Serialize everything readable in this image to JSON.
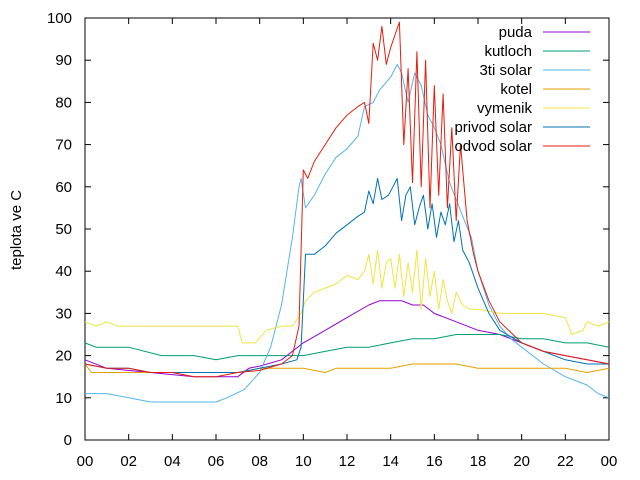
{
  "chart_data": {
    "type": "line",
    "title": "",
    "xlabel": "",
    "ylabel": "teplota ve C",
    "xlim": [
      0,
      24
    ],
    "ylim": [
      0,
      100
    ],
    "x_tick_labels": [
      "00",
      "02",
      "04",
      "06",
      "08",
      "10",
      "12",
      "14",
      "16",
      "18",
      "20",
      "22",
      "00"
    ],
    "y_ticks": [
      0,
      10,
      20,
      30,
      40,
      50,
      60,
      70,
      80,
      90,
      100
    ],
    "grid": false,
    "legend_position": "top-right",
    "series": [
      {
        "name": "puda",
        "color": "#9400d3",
        "points": [
          [
            0,
            19
          ],
          [
            1,
            17
          ],
          [
            3,
            16
          ],
          [
            5,
            15
          ],
          [
            7,
            15
          ],
          [
            7.5,
            17
          ],
          [
            8,
            17.5
          ],
          [
            9,
            19
          ],
          [
            10,
            23
          ],
          [
            11,
            26
          ],
          [
            12,
            29
          ],
          [
            13,
            32
          ],
          [
            13.5,
            33
          ],
          [
            14.5,
            33
          ],
          [
            15,
            32
          ],
          [
            15.5,
            32
          ],
          [
            16,
            30
          ],
          [
            17,
            28
          ],
          [
            18,
            26
          ],
          [
            19,
            25
          ],
          [
            20,
            23
          ],
          [
            21,
            21
          ],
          [
            22,
            20
          ],
          [
            23,
            19
          ],
          [
            24,
            18
          ]
        ]
      },
      {
        "name": "kutloch",
        "color": "#009e73",
        "points": [
          [
            0,
            23
          ],
          [
            0.5,
            22
          ],
          [
            2,
            22
          ],
          [
            3.5,
            20
          ],
          [
            5,
            20
          ],
          [
            6,
            19
          ],
          [
            7,
            20
          ],
          [
            8,
            20
          ],
          [
            9,
            20
          ],
          [
            10,
            20
          ],
          [
            11,
            21
          ],
          [
            12,
            22
          ],
          [
            13,
            22
          ],
          [
            14,
            23
          ],
          [
            15,
            24
          ],
          [
            16,
            24
          ],
          [
            17,
            25
          ],
          [
            18,
            25
          ],
          [
            19,
            25
          ],
          [
            20,
            24
          ],
          [
            21,
            24
          ],
          [
            22,
            23
          ],
          [
            23,
            23
          ],
          [
            24,
            22
          ]
        ]
      },
      {
        "name": "3ti solar",
        "color": "#56b4e9",
        "points": [
          [
            0,
            11
          ],
          [
            1,
            11
          ],
          [
            2,
            10
          ],
          [
            3,
            9
          ],
          [
            4,
            9
          ],
          [
            5,
            9
          ],
          [
            6,
            9
          ],
          [
            6.5,
            10
          ],
          [
            7.3,
            12
          ],
          [
            8,
            16
          ],
          [
            8.5,
            22
          ],
          [
            9,
            32
          ],
          [
            9.5,
            48
          ],
          [
            9.8,
            60
          ],
          [
            9.9,
            62
          ],
          [
            10.1,
            55
          ],
          [
            10.5,
            58
          ],
          [
            11,
            63
          ],
          [
            11.5,
            67
          ],
          [
            12,
            69
          ],
          [
            12.5,
            72
          ],
          [
            12.8,
            79
          ],
          [
            13.2,
            80
          ],
          [
            13.5,
            83
          ],
          [
            14,
            86
          ],
          [
            14.3,
            89
          ],
          [
            14.5,
            87
          ],
          [
            14.8,
            80
          ],
          [
            15.1,
            87
          ],
          [
            15.4,
            84
          ],
          [
            15.7,
            77
          ],
          [
            16,
            74
          ],
          [
            16.3,
            70
          ],
          [
            16.7,
            61
          ],
          [
            17,
            57
          ],
          [
            17.3,
            53
          ],
          [
            17.7,
            48
          ],
          [
            18,
            40
          ],
          [
            18.5,
            32
          ],
          [
            19,
            27
          ],
          [
            19.5,
            24
          ],
          [
            20,
            22
          ],
          [
            21,
            18
          ],
          [
            22,
            15
          ],
          [
            23,
            13
          ],
          [
            23.5,
            11
          ],
          [
            24,
            10
          ]
        ]
      },
      {
        "name": "kotel",
        "color": "#e69f00",
        "points": [
          [
            0,
            18
          ],
          [
            0.3,
            16
          ],
          [
            1,
            16
          ],
          [
            3,
            16
          ],
          [
            5,
            16
          ],
          [
            7,
            16
          ],
          [
            8,
            17
          ],
          [
            9,
            17
          ],
          [
            10,
            17
          ],
          [
            11,
            16
          ],
          [
            11.5,
            17
          ],
          [
            13,
            17
          ],
          [
            14,
            17
          ],
          [
            15,
            18
          ],
          [
            17,
            18
          ],
          [
            18,
            17
          ],
          [
            19,
            17
          ],
          [
            20,
            17
          ],
          [
            21,
            17
          ],
          [
            22,
            17
          ],
          [
            23,
            16
          ],
          [
            24,
            17
          ]
        ]
      },
      {
        "name": "vymenik",
        "color": "#f0e442",
        "points": [
          [
            0,
            28
          ],
          [
            0.5,
            27
          ],
          [
            1,
            28
          ],
          [
            1.5,
            27
          ],
          [
            2,
            27
          ],
          [
            4,
            27
          ],
          [
            6,
            27
          ],
          [
            7,
            27
          ],
          [
            7.2,
            23
          ],
          [
            7.8,
            23
          ],
          [
            8.3,
            26
          ],
          [
            9,
            27
          ],
          [
            9.5,
            27
          ],
          [
            9.9,
            30
          ],
          [
            10.1,
            33
          ],
          [
            10.5,
            35
          ],
          [
            11,
            36
          ],
          [
            11.5,
            37
          ],
          [
            12,
            39
          ],
          [
            12.5,
            38
          ],
          [
            12.8,
            40
          ],
          [
            13,
            44
          ],
          [
            13.2,
            37
          ],
          [
            13.4,
            45
          ],
          [
            13.6,
            36
          ],
          [
            13.8,
            42
          ],
          [
            14,
            43
          ],
          [
            14.2,
            36
          ],
          [
            14.4,
            44
          ],
          [
            14.6,
            34
          ],
          [
            14.8,
            42
          ],
          [
            15,
            35
          ],
          [
            15.2,
            45
          ],
          [
            15.4,
            31
          ],
          [
            15.6,
            43
          ],
          [
            15.8,
            34
          ],
          [
            16,
            40
          ],
          [
            16.2,
            31
          ],
          [
            16.4,
            38
          ],
          [
            16.6,
            33
          ],
          [
            16.8,
            30
          ],
          [
            17,
            35
          ],
          [
            17.3,
            32
          ],
          [
            17.6,
            31
          ],
          [
            18,
            31
          ],
          [
            19,
            30
          ],
          [
            20,
            30
          ],
          [
            21,
            30
          ],
          [
            22,
            29
          ],
          [
            22.3,
            25
          ],
          [
            22.8,
            26
          ],
          [
            23,
            28
          ],
          [
            23.5,
            27
          ],
          [
            24,
            28
          ]
        ]
      },
      {
        "name": "privod solar",
        "color": "#0072b2",
        "points": [
          [
            0,
            18
          ],
          [
            1,
            17
          ],
          [
            2,
            17
          ],
          [
            3,
            16
          ],
          [
            5,
            16
          ],
          [
            6,
            16
          ],
          [
            7,
            16
          ],
          [
            8,
            17
          ],
          [
            9,
            18
          ],
          [
            9.7,
            19
          ],
          [
            9.9,
            22
          ],
          [
            10.1,
            44
          ],
          [
            10.5,
            44
          ],
          [
            11,
            46
          ],
          [
            11.5,
            49
          ],
          [
            12,
            51
          ],
          [
            12.5,
            53
          ],
          [
            12.8,
            54
          ],
          [
            13,
            59
          ],
          [
            13.2,
            56
          ],
          [
            13.4,
            62
          ],
          [
            13.6,
            57
          ],
          [
            13.9,
            58
          ],
          [
            14.1,
            60
          ],
          [
            14.3,
            62
          ],
          [
            14.5,
            52
          ],
          [
            14.7,
            58
          ],
          [
            14.9,
            60
          ],
          [
            15.1,
            51
          ],
          [
            15.3,
            55
          ],
          [
            15.5,
            58
          ],
          [
            15.7,
            50
          ],
          [
            15.9,
            56
          ],
          [
            16.1,
            48
          ],
          [
            16.3,
            54
          ],
          [
            16.5,
            51
          ],
          [
            16.7,
            56
          ],
          [
            16.9,
            47
          ],
          [
            17.1,
            52
          ],
          [
            17.3,
            45
          ],
          [
            17.6,
            42
          ],
          [
            18,
            36
          ],
          [
            18.5,
            30
          ],
          [
            19,
            26
          ],
          [
            20,
            23
          ],
          [
            21,
            21
          ],
          [
            22,
            19
          ],
          [
            23,
            18
          ],
          [
            24,
            18
          ]
        ]
      },
      {
        "name": "odvod solar",
        "color": "#e51e10",
        "points": [
          [
            0,
            18
          ],
          [
            1,
            17
          ],
          [
            2,
            17
          ],
          [
            3,
            16
          ],
          [
            4,
            16
          ],
          [
            5,
            15
          ],
          [
            6,
            15
          ],
          [
            7,
            16
          ],
          [
            8,
            16.5
          ],
          [
            9,
            18
          ],
          [
            9.5,
            20
          ],
          [
            9.8,
            27
          ],
          [
            10,
            64
          ],
          [
            10.2,
            62
          ],
          [
            10.5,
            66
          ],
          [
            11,
            70
          ],
          [
            11.5,
            74
          ],
          [
            12,
            77
          ],
          [
            12.5,
            79
          ],
          [
            12.8,
            80
          ],
          [
            13,
            75
          ],
          [
            13.2,
            94
          ],
          [
            13.4,
            90
          ],
          [
            13.6,
            98
          ],
          [
            13.8,
            89
          ],
          [
            14,
            93
          ],
          [
            14.2,
            96
          ],
          [
            14.4,
            99
          ],
          [
            14.6,
            70
          ],
          [
            14.8,
            88
          ],
          [
            15,
            61
          ],
          [
            15.2,
            92
          ],
          [
            15.4,
            60
          ],
          [
            15.6,
            90
          ],
          [
            15.8,
            55
          ],
          [
            16,
            84
          ],
          [
            16.2,
            58
          ],
          [
            16.4,
            82
          ],
          [
            16.6,
            55
          ],
          [
            16.8,
            74
          ],
          [
            17,
            52
          ],
          [
            17.2,
            70
          ],
          [
            17.5,
            52
          ],
          [
            17.8,
            44
          ],
          [
            18,
            40
          ],
          [
            18.5,
            33
          ],
          [
            19,
            28
          ],
          [
            20,
            23
          ],
          [
            21,
            21
          ],
          [
            22,
            20
          ],
          [
            23,
            19
          ],
          [
            24,
            18
          ]
        ]
      }
    ]
  }
}
